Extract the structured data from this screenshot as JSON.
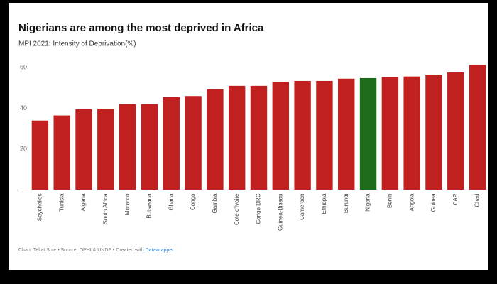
{
  "chart_data": {
    "type": "bar",
    "title": "Nigerians are among the most deprived in Africa",
    "subtitle": "MPI 2021: Intensity of Deprivation(%)",
    "categories": [
      "Seychelles",
      "Tunisia",
      "Algeria",
      "South Africa",
      "Morocco",
      "Botswana",
      "Ghana",
      "Congo",
      "Gambia",
      "Cote d'Ivoire",
      "Congo DRC",
      "Guinea-Bissau",
      "Cameroon",
      "Ethiopia",
      "Burundi",
      "Nigeria",
      "Benin",
      "Angola",
      "Guinea",
      "CAR",
      "Chad"
    ],
    "values": [
      34,
      36.5,
      39.5,
      39.8,
      42,
      42,
      45.5,
      46,
      49.3,
      51,
      51,
      53,
      53.4,
      53.4,
      54.5,
      54.8,
      55.3,
      55.6,
      56.5,
      57.6,
      61.3
    ],
    "colors": [
      "#c0201f",
      "#c0201f",
      "#c0201f",
      "#c0201f",
      "#c0201f",
      "#c0201f",
      "#c0201f",
      "#c0201f",
      "#c0201f",
      "#c0201f",
      "#c0201f",
      "#c0201f",
      "#c0201f",
      "#c0201f",
      "#c0201f",
      "#1e6b1a",
      "#c0201f",
      "#c0201f",
      "#c0201f",
      "#c0201f",
      "#c0201f"
    ],
    "ylim": [
      0,
      65
    ],
    "yticks": [
      20,
      40,
      60
    ],
    "grid": false,
    "footer": "Chart: Teliat Sule • Source: OPHI & UNDP • Created with ",
    "footer_link": "Datawrapper"
  }
}
